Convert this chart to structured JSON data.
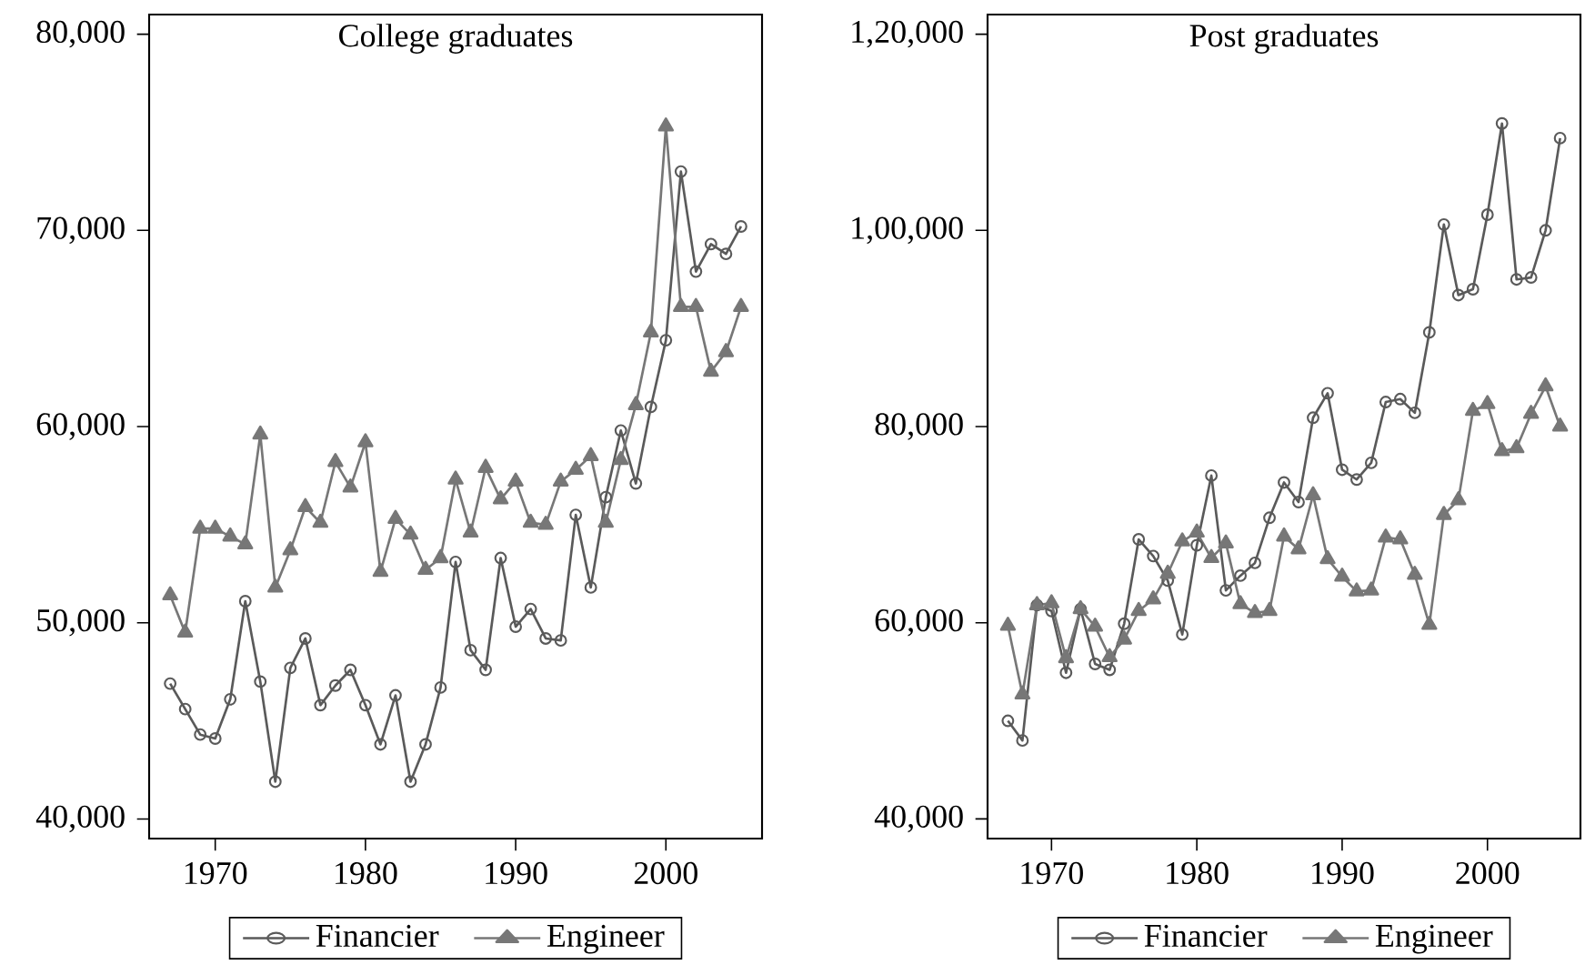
{
  "chart_data": [
    {
      "type": "line",
      "title": "College graduates",
      "x": [
        1967,
        1968,
        1969,
        1970,
        1971,
        1972,
        1973,
        1974,
        1975,
        1976,
        1977,
        1978,
        1979,
        1980,
        1981,
        1982,
        1983,
        1984,
        1985,
        1986,
        1987,
        1988,
        1989,
        1990,
        1991,
        1992,
        1993,
        1994,
        1995,
        1996,
        1997,
        1998,
        1999,
        2000,
        2001,
        2002,
        2003,
        2004,
        2005
      ],
      "series": [
        {
          "name": "Financier",
          "color": "#5a5a5a",
          "marker": "circle",
          "values": [
            46900,
            45600,
            44300,
            44100,
            46100,
            51100,
            47000,
            41900,
            47700,
            49200,
            45800,
            46800,
            47600,
            45800,
            43800,
            46300,
            41900,
            43800,
            46700,
            53100,
            48600,
            47600,
            53300,
            49800,
            50700,
            49200,
            49100,
            55500,
            51800,
            56400,
            59800,
            57100,
            61000,
            64400,
            73000,
            67900,
            69300,
            68800,
            70200
          ]
        },
        {
          "name": "Engineer",
          "color": "#777777",
          "marker": "triangle",
          "values": [
            51400,
            49500,
            54800,
            54800,
            54400,
            54000,
            59600,
            51800,
            53700,
            55900,
            55100,
            58200,
            56900,
            59200,
            52600,
            55300,
            54500,
            52700,
            53300,
            57300,
            54600,
            57900,
            56300,
            57200,
            55100,
            55000,
            57200,
            57800,
            58500,
            55100,
            58300,
            61100,
            64800,
            75300,
            66100,
            66100,
            62800,
            63800,
            66100
          ]
        }
      ],
      "xlim": [
        1965.6,
        2006.4
      ],
      "xticks": [
        1970,
        1980,
        1990,
        2000
      ],
      "ylim": [
        39000,
        81000
      ],
      "yticks": [
        {
          "value": 40000,
          "label": "40,000"
        },
        {
          "value": 50000,
          "label": "50,000"
        },
        {
          "value": 60000,
          "label": "60,000"
        },
        {
          "value": 70000,
          "label": "70,000"
        },
        {
          "value": 80000,
          "label": "80,000"
        }
      ],
      "legend": "bottom"
    },
    {
      "type": "line",
      "title": "Post graduates",
      "x": [
        1967,
        1968,
        1969,
        1970,
        1971,
        1972,
        1973,
        1974,
        1975,
        1976,
        1977,
        1978,
        1979,
        1980,
        1981,
        1982,
        1983,
        1984,
        1985,
        1986,
        1987,
        1988,
        1989,
        1990,
        1991,
        1992,
        1993,
        1994,
        1995,
        1996,
        1997,
        1998,
        1999,
        2000,
        2001,
        2002,
        2003,
        2004,
        2005
      ],
      "series": [
        {
          "name": "Financier",
          "color": "#5a5a5a",
          "marker": "circle",
          "values": [
            50000,
            48000,
            61800,
            61200,
            54900,
            61400,
            55800,
            55200,
            59900,
            68500,
            66800,
            64300,
            58800,
            67900,
            75000,
            63300,
            64800,
            66100,
            70700,
            74300,
            72300,
            80900,
            83400,
            75600,
            74600,
            76300,
            82500,
            82800,
            81400,
            89600,
            100600,
            93400,
            94000,
            101600,
            110900,
            95000,
            95200,
            100000,
            109400
          ]
        },
        {
          "name": "Engineer",
          "color": "#777777",
          "marker": "triangle",
          "values": [
            59700,
            52700,
            61800,
            62000,
            56400,
            61400,
            59600,
            56500,
            58300,
            61200,
            62400,
            65000,
            68300,
            69200,
            66600,
            68100,
            61900,
            61000,
            61200,
            68800,
            67500,
            73000,
            66500,
            64700,
            63200,
            63300,
            68700,
            68500,
            64900,
            59800,
            71000,
            72500,
            81600,
            82300,
            77500,
            77800,
            81300,
            84100,
            80000
          ]
        }
      ],
      "xlim": [
        1965.6,
        2006.4
      ],
      "xticks": [
        1970,
        1980,
        1990,
        2000
      ],
      "ylim": [
        38000,
        122000
      ],
      "yticks": [
        {
          "value": 40000,
          "label": "40,000"
        },
        {
          "value": 60000,
          "label": "60,000"
        },
        {
          "value": 80000,
          "label": "80,000"
        },
        {
          "value": 100000,
          "label": "1,00,000"
        },
        {
          "value": 120000,
          "label": "1,20,000"
        }
      ],
      "legend": "bottom"
    }
  ]
}
